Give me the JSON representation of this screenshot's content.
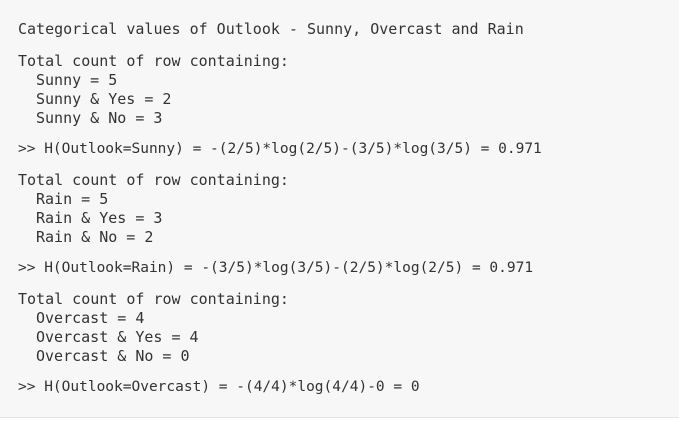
{
  "title": "Categorical values of Outlook - Sunny, Overcast and Rain",
  "sections": [
    {
      "header": "Total count of row containing:",
      "counts": [
        "Sunny = 5",
        "Sunny & Yes = 2",
        "Sunny & No = 3"
      ],
      "result": ">> H(Outlook=Sunny) = -(2/5)*log(2/5)-(3/5)*log(3/5) = 0.971"
    },
    {
      "header": "Total count of row containing:",
      "counts": [
        "Rain = 5",
        "Rain & Yes = 3",
        "Rain & No = 2"
      ],
      "result": ">> H(Outlook=Rain) = -(3/5)*log(3/5)-(2/5)*log(2/5) = 0.971"
    },
    {
      "header": "Total count of row containing:",
      "counts": [
        "Overcast = 4",
        "Overcast & Yes = 4",
        "Overcast & No = 0"
      ],
      "result": ">> H(Outlook=Overcast) = -(4/4)*log(4/4)-0 = 0"
    }
  ]
}
